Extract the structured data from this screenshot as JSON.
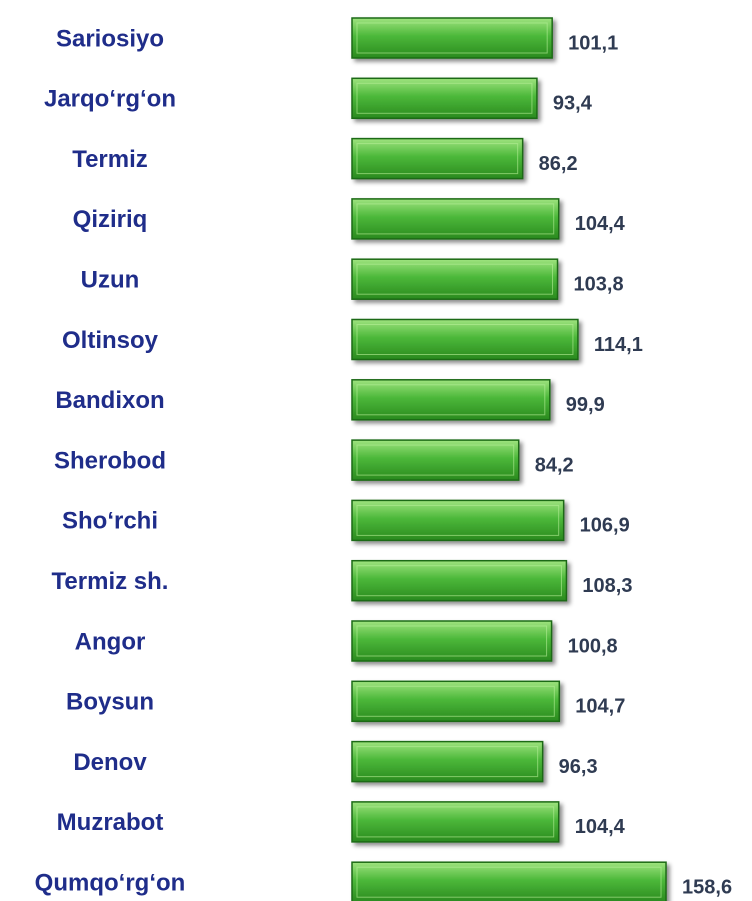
{
  "chart_data": {
    "type": "bar",
    "orientation": "horizontal",
    "color": "#4cb83a",
    "categories": [
      "Sariosiyo",
      "Jarqo‘rg‘on",
      "Termiz",
      "Qiziriq",
      "Uzun",
      "Oltinsoy",
      "Bandixon",
      "Sherobod",
      "Sho‘rchi",
      "Termiz sh.",
      "Angor",
      "Boysun",
      "Denov",
      "Muzrabot",
      "Qumqo‘rg‘on"
    ],
    "values": [
      101.1,
      93.4,
      86.2,
      104.4,
      103.8,
      114.1,
      99.9,
      84.2,
      106.9,
      108.3,
      100.8,
      104.7,
      96.3,
      104.4,
      158.6
    ],
    "value_labels": [
      "101,1",
      "93,4",
      "86,2",
      "104,4",
      "103,8",
      "114,1",
      "99,9",
      "84,2",
      "106,9",
      "108,3",
      "100,8",
      "104,7",
      "96,3",
      "104,4",
      "158,6"
    ]
  }
}
